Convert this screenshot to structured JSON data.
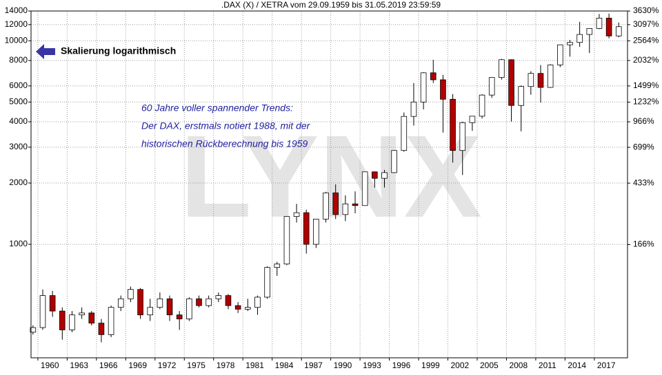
{
  "chart_data": {
    "type": "candlestick",
    "title": ".DAX (X) / XETRA vom 29.09.1959 bis 31.05.2019 23:59:59",
    "annotations": [
      "Skalierung logarithmisch",
      "60 Jahre voller spannender Trends:",
      "Der DAX, erstmals notiert 1988, mit der",
      "historischen Rückberechnung bis 1959"
    ],
    "watermark": "LYNX",
    "log_scale": true,
    "grid": true,
    "up_color": "#ffffff",
    "down_color": "#b00000",
    "x": [
      1959,
      1960,
      1961,
      1962,
      1963,
      1964,
      1965,
      1966,
      1967,
      1968,
      1969,
      1970,
      1971,
      1972,
      1973,
      1974,
      1975,
      1976,
      1977,
      1978,
      1979,
      1980,
      1981,
      1982,
      1983,
      1984,
      1985,
      1986,
      1987,
      1988,
      1989,
      1990,
      1991,
      1992,
      1993,
      1994,
      1995,
      1996,
      1997,
      1998,
      1999,
      2000,
      2001,
      2002,
      2003,
      2004,
      2005,
      2006,
      2007,
      2008,
      2009,
      2010,
      2011,
      2012,
      2013,
      2014,
      2015,
      2016,
      2017,
      2018,
      2019
    ],
    "open": [
      370,
      390,
      560,
      470,
      380,
      450,
      460,
      410,
      360,
      490,
      540,
      600,
      450,
      490,
      540,
      450,
      430,
      540,
      500,
      540,
      560,
      500,
      480,
      490,
      550,
      770,
      800,
      1370,
      1430,
      1000,
      1330,
      1790,
      1400,
      1580,
      1550,
      2270,
      2110,
      2250,
      2890,
      4250,
      5000,
      6960,
      6430,
      5160,
      2890,
      3960,
      4260,
      5410,
      6600,
      8070,
      4810,
      5960,
      6910,
      5900,
      7610,
      9550,
      9810,
      10740,
      11480,
      12920,
      10560
    ],
    "high": [
      400,
      600,
      590,
      490,
      470,
      490,
      470,
      430,
      500,
      560,
      620,
      610,
      540,
      580,
      560,
      470,
      550,
      560,
      560,
      580,
      570,
      520,
      540,
      560,
      780,
      820,
      1370,
      1580,
      1480,
      1330,
      1810,
      1970,
      1740,
      1820,
      2270,
      2280,
      2320,
      2900,
      4440,
      6200,
      7000,
      8060,
      6800,
      5470,
      4000,
      4270,
      5460,
      6610,
      8150,
      8100,
      6030,
      7080,
      7600,
      7670,
      9590,
      10090,
      12390,
      11480,
      13530,
      13600,
      12300
    ],
    "low": [
      360,
      380,
      440,
      340,
      370,
      430,
      400,
      330,
      350,
      470,
      520,
      430,
      420,
      480,
      420,
      380,
      420,
      490,
      490,
      520,
      480,
      460,
      470,
      450,
      540,
      700,
      790,
      1280,
      900,
      960,
      1280,
      1330,
      1300,
      1420,
      1550,
      1900,
      1900,
      2240,
      2850,
      3830,
      4600,
      6200,
      3540,
      2520,
      2190,
      3610,
      4150,
      5240,
      6440,
      4010,
      3590,
      5430,
      4970,
      5870,
      7420,
      8350,
      9330,
      8700,
      11400,
      10280,
      10400
    ],
    "close": [
      390,
      560,
      470,
      380,
      450,
      460,
      410,
      360,
      490,
      540,
      600,
      450,
      490,
      540,
      450,
      430,
      540,
      500,
      540,
      560,
      500,
      480,
      490,
      550,
      770,
      800,
      1370,
      1430,
      1000,
      1330,
      1790,
      1400,
      1580,
      1550,
      2270,
      2110,
      2250,
      2890,
      4250,
      5000,
      6960,
      6430,
      5160,
      2890,
      3960,
      4260,
      5410,
      6600,
      8070,
      4810,
      5960,
      6910,
      5900,
      7610,
      9550,
      9810,
      10740,
      11480,
      12920,
      10560,
      11730
    ],
    "xlim": [
      1959.3,
      2020.4
    ],
    "xticks": [
      1960,
      1963,
      1966,
      1969,
      1972,
      1975,
      1978,
      1981,
      1984,
      1987,
      1990,
      1993,
      1996,
      1999,
      2002,
      2005,
      2008,
      2011,
      2014,
      2017
    ],
    "ylim": [
      277,
      14000
    ],
    "yticks": [
      1000,
      2000,
      3000,
      4000,
      5000,
      6000,
      8000,
      10000,
      12000,
      14000
    ],
    "y2lim": [
      -26,
      3630
    ],
    "y2ticks": [
      {
        "value": 166,
        "label": "166%"
      },
      {
        "value": 433,
        "label": "433%"
      },
      {
        "value": 699,
        "label": "699%"
      },
      {
        "value": 966,
        "label": "966%"
      },
      {
        "value": 1232,
        "label": "1232%"
      },
      {
        "value": 1499,
        "label": "1499%"
      },
      {
        "value": 2032,
        "label": "2032%"
      },
      {
        "value": 2564,
        "label": "2564%"
      },
      {
        "value": 3097,
        "label": "3097%"
      },
      {
        "value": 3630,
        "label": "3630%"
      }
    ]
  }
}
